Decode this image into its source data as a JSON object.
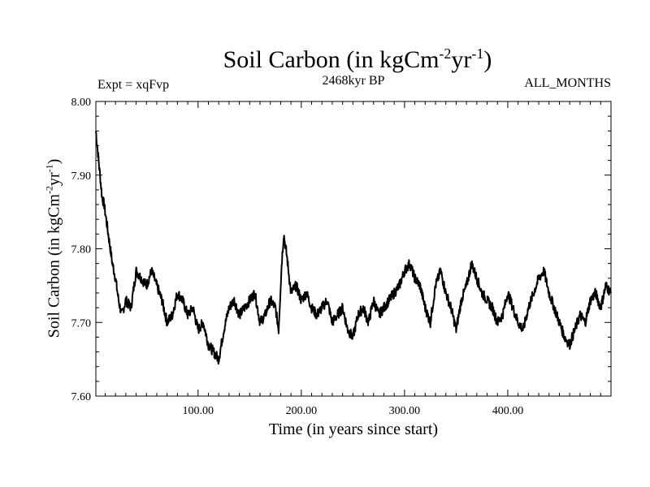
{
  "chart_data": {
    "type": "line",
    "title": "Soil Carbon (in kgCm",
    "title_exp1": "-2",
    "title_mid": "yr",
    "title_exp2": "-1",
    "title_end": ")",
    "subtitle": "2468kyr BP",
    "expt_label": "Expt = xqFvp",
    "months_label": "ALL_MONTHS",
    "xlabel": "Time (in years since start)",
    "ylabel": "Soil Carbon (in kgCm",
    "ylabel_exp1": "-2",
    "ylabel_mid": "yr",
    "ylabel_exp2": "-1",
    "ylabel_end": ")",
    "xlim": [
      1,
      500
    ],
    "ylim": [
      7.6,
      8.0
    ],
    "x_ticks": [
      100,
      200,
      300,
      400
    ],
    "x_tick_labels": [
      "100.00",
      "200.00",
      "300.00",
      "400.00"
    ],
    "y_ticks": [
      7.6,
      7.7,
      7.8,
      7.9,
      8.0
    ],
    "y_tick_labels": [
      "7.60",
      "7.70",
      "7.80",
      "7.90",
      "8.00"
    ],
    "series": [
      {
        "name": "Soil Carbon",
        "x": [
          1,
          3,
          5,
          7,
          9,
          11,
          13,
          15,
          17,
          20,
          23,
          26,
          30,
          35,
          40,
          45,
          50,
          55,
          60,
          65,
          70,
          75,
          80,
          85,
          90,
          95,
          100,
          105,
          110,
          115,
          120,
          125,
          130,
          135,
          140,
          145,
          150,
          155,
          160,
          165,
          170,
          175,
          178,
          181,
          183,
          186,
          190,
          195,
          200,
          205,
          210,
          215,
          220,
          225,
          230,
          235,
          240,
          245,
          250,
          255,
          260,
          265,
          270,
          275,
          280,
          285,
          290,
          295,
          300,
          305,
          310,
          315,
          320,
          325,
          330,
          335,
          340,
          345,
          350,
          355,
          360,
          365,
          370,
          375,
          380,
          385,
          390,
          395,
          400,
          405,
          410,
          415,
          420,
          425,
          430,
          435,
          440,
          445,
          450,
          455,
          460,
          465,
          470,
          475,
          480,
          485,
          490,
          495,
          500
        ],
        "values": [
          7.96,
          7.93,
          7.9,
          7.87,
          7.86,
          7.84,
          7.82,
          7.8,
          7.78,
          7.76,
          7.73,
          7.71,
          7.73,
          7.72,
          7.77,
          7.76,
          7.75,
          7.77,
          7.75,
          7.73,
          7.7,
          7.71,
          7.74,
          7.73,
          7.71,
          7.72,
          7.69,
          7.7,
          7.67,
          7.66,
          7.65,
          7.69,
          7.72,
          7.73,
          7.71,
          7.72,
          7.73,
          7.74,
          7.7,
          7.71,
          7.73,
          7.72,
          7.69,
          7.78,
          7.82,
          7.79,
          7.74,
          7.75,
          7.73,
          7.74,
          7.72,
          7.71,
          7.72,
          7.73,
          7.7,
          7.71,
          7.72,
          7.69,
          7.68,
          7.71,
          7.72,
          7.7,
          7.73,
          7.71,
          7.72,
          7.73,
          7.74,
          7.75,
          7.77,
          7.78,
          7.76,
          7.75,
          7.72,
          7.7,
          7.75,
          7.77,
          7.74,
          7.72,
          7.69,
          7.73,
          7.75,
          7.78,
          7.76,
          7.74,
          7.73,
          7.72,
          7.7,
          7.71,
          7.74,
          7.72,
          7.7,
          7.69,
          7.72,
          7.74,
          7.76,
          7.77,
          7.74,
          7.72,
          7.7,
          7.68,
          7.67,
          7.69,
          7.71,
          7.7,
          7.73,
          7.74,
          7.72,
          7.75,
          7.74
        ]
      }
    ]
  }
}
